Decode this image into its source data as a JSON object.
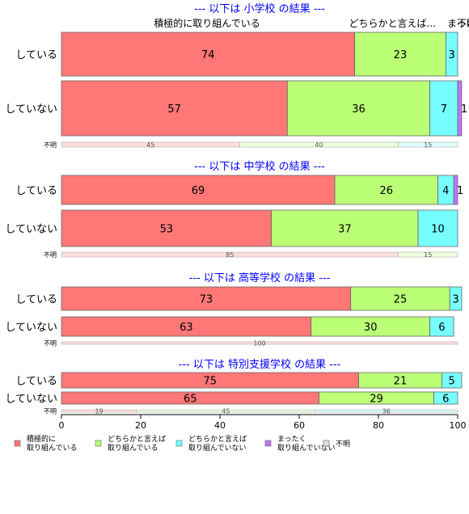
{
  "chart_data": {
    "type": "bar",
    "orientation": "horizontal",
    "stacked": true,
    "xlim": [
      0,
      100
    ],
    "x_ticks": [
      "0",
      "20",
      "40",
      "60",
      "80",
      "100"
    ],
    "top_labels": [
      "積極的に取り組んでいる",
      "どちらかと言えば...",
      "まった",
      "不明"
    ],
    "panels": [
      {
        "title": "--- 以下は 小学校 の結果 ---",
        "rows": [
          {
            "label": "している",
            "values": [
              74,
              23,
              3,
              0,
              0
            ],
            "value_labels": [
              "74",
              "23",
              "3",
              "",
              ""
            ]
          },
          {
            "label": "していない",
            "values": [
              57,
              36,
              7,
              1,
              0
            ],
            "value_labels": [
              "57",
              "36",
              "7",
              "1",
              ""
            ]
          },
          {
            "label": "不明",
            "values": [
              45,
              40,
              15,
              0,
              0
            ],
            "value_labels": [
              "45",
              "40",
              "15",
              "",
              ""
            ]
          }
        ]
      },
      {
        "title": "--- 以下は 中学校 の結果 ---",
        "rows": [
          {
            "label": "している",
            "values": [
              69,
              26,
              4,
              1,
              0
            ],
            "value_labels": [
              "69",
              "26",
              "4",
              "1",
              ""
            ]
          },
          {
            "label": "していない",
            "values": [
              53,
              37,
              10,
              0,
              0
            ],
            "value_labels": [
              "53",
              "37",
              "10",
              "",
              ""
            ]
          },
          {
            "label": "不明",
            "values": [
              85,
              15,
              0,
              0,
              0
            ],
            "value_labels": [
              "85",
              "15",
              "",
              "",
              ""
            ]
          }
        ]
      },
      {
        "title": "--- 以下は 高等学校 の結果 ---",
        "rows": [
          {
            "label": "している",
            "values": [
              73,
              25,
              3,
              0,
              0
            ],
            "value_labels": [
              "73",
              "25",
              "3",
              "",
              ""
            ]
          },
          {
            "label": "していない",
            "values": [
              63,
              30,
              6,
              0,
              0
            ],
            "value_labels": [
              "63",
              "30",
              "6",
              "",
              ""
            ]
          },
          {
            "label": "不明",
            "values": [
              100,
              0,
              0,
              0,
              0
            ],
            "value_labels": [
              "100",
              "",
              "",
              "",
              ""
            ]
          }
        ]
      },
      {
        "title": "--- 以下は 特別支援学校 の結果 ---",
        "rows": [
          {
            "label": "している",
            "values": [
              75,
              21,
              5,
              0,
              0
            ],
            "value_labels": [
              "75",
              "21",
              "5",
              "",
              ""
            ]
          },
          {
            "label": "していない",
            "values": [
              65,
              29,
              6,
              0,
              0
            ],
            "value_labels": [
              "65",
              "29",
              "6",
              "",
              ""
            ]
          },
          {
            "label": "不明",
            "values": [
              19,
              45,
              36,
              0,
              0
            ],
            "value_labels": [
              "19",
              "45",
              "36",
              "",
              ""
            ]
          }
        ]
      }
    ],
    "legend": [
      {
        "label": "積極的に\n取り組んでいる",
        "color": "#ff7777"
      },
      {
        "label": "どちらかと言えば\n取り組んでいる",
        "color": "#bbff77"
      },
      {
        "label": "どちらかと言えば\n取り組んでいない",
        "color": "#77ffff"
      },
      {
        "label": "まったく\n取り組んでいない",
        "color": "#bb77ff"
      },
      {
        "label": "不明",
        "color": "#dddddd"
      }
    ],
    "colors_light": [
      "#ffdddd",
      "#eeffdd",
      "#ddffff",
      "#eeddff",
      "#f4f4f4"
    ],
    "title_color": "#0000ff",
    "legend_position": "bottom"
  }
}
